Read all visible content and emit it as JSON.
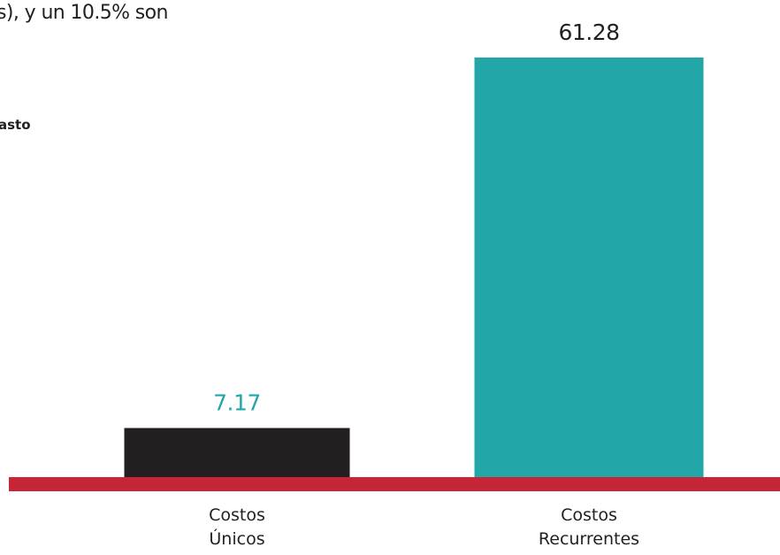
{
  "caption_fragment": "s), y un 10.5% son",
  "legend_fragment": "asto",
  "chart_data": {
    "type": "bar",
    "title": "",
    "xlabel": "",
    "ylabel": "",
    "categories": [
      [
        "Costos",
        "Únicos"
      ],
      [
        "Costos",
        "Recurrentes"
      ]
    ],
    "values": [
      7.17,
      61.28
    ],
    "value_labels": [
      "7.17",
      "61.28"
    ],
    "bar_colors": [
      "#231f20",
      "#23a6a8"
    ],
    "value_label_colors": [
      "#23a6a8",
      "#231f20"
    ],
    "baseline_color": "#c62538",
    "category_label_color": "#231f20",
    "grid": false,
    "legend": "none",
    "ylim": [
      0,
      61.28
    ]
  }
}
